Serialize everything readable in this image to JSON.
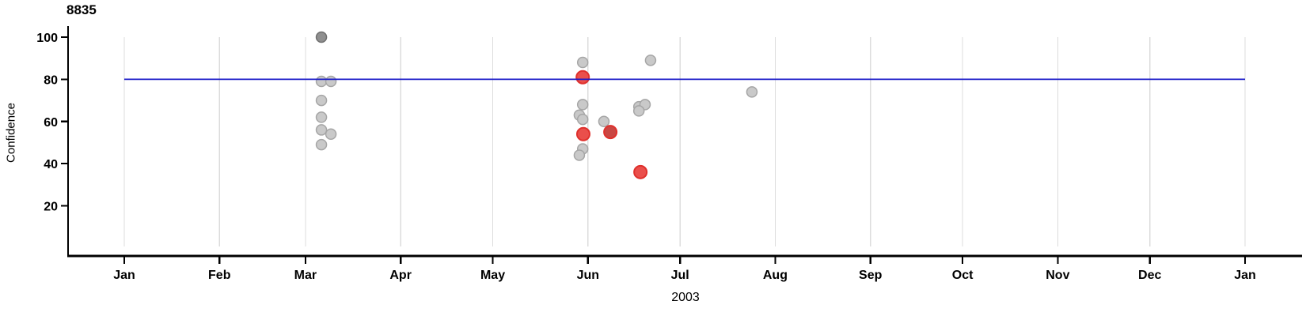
{
  "chart_data": {
    "type": "scatter",
    "title": "8835",
    "ylabel": "Confidence",
    "xlabel": "2003",
    "x_axis": {
      "unit": "date (year 2003, Jan through following Jan)",
      "tick_labels": [
        "Jan",
        "Feb",
        "Mar",
        "Apr",
        "May",
        "Jun",
        "Jul",
        "Aug",
        "Sep",
        "Oct",
        "Nov",
        "Dec",
        "Jan"
      ],
      "tick_days": [
        0,
        31,
        59,
        90,
        120,
        151,
        181,
        212,
        243,
        273,
        304,
        334,
        365
      ],
      "range_days": [
        0,
        365
      ],
      "grid": "vertical-gridlines-at-month-starts"
    },
    "y_axis": {
      "ticks": [
        20,
        40,
        60,
        80,
        100
      ],
      "range": [
        0,
        105
      ],
      "grid": "off"
    },
    "reference_line": {
      "y": 80,
      "color": "#1A1AC8"
    },
    "legend": "none",
    "series_colors": {
      "gray": {
        "fill": "#C9C9C9",
        "stroke": "#A6A6A6"
      },
      "gray_dark": {
        "fill": "#8F8F8F",
        "stroke": "#6E6E6E"
      },
      "red": {
        "fill": "#EA4F4B",
        "stroke": "#DF302C"
      },
      "red_dark": {
        "fill": "#C94743",
        "stroke": "#DF302C"
      }
    },
    "points": [
      {
        "date": "Mar 6",
        "day": 64.2,
        "confidence": 100,
        "series": "gray",
        "shade": "dark"
      },
      {
        "date": "Mar 6",
        "day": 64.2,
        "confidence": 79,
        "series": "gray",
        "shade": "normal"
      },
      {
        "date": "Mar 9",
        "day": 67.3,
        "confidence": 79,
        "series": "gray",
        "shade": "normal"
      },
      {
        "date": "Mar 6",
        "day": 64.2,
        "confidence": 70,
        "series": "gray",
        "shade": "normal"
      },
      {
        "date": "Mar 6",
        "day": 64.2,
        "confidence": 62,
        "series": "gray",
        "shade": "normal"
      },
      {
        "date": "Mar 6",
        "day": 64.2,
        "confidence": 56,
        "series": "gray",
        "shade": "normal"
      },
      {
        "date": "Mar 9",
        "day": 67.3,
        "confidence": 54,
        "series": "gray",
        "shade": "normal"
      },
      {
        "date": "Mar 6",
        "day": 64.2,
        "confidence": 49,
        "series": "gray",
        "shade": "normal"
      },
      {
        "date": "May 30",
        "day": 149.3,
        "confidence": 88,
        "series": "gray",
        "shade": "normal"
      },
      {
        "date": "May 30",
        "day": 149.3,
        "confidence": 81,
        "series": "red",
        "shade": "normal"
      },
      {
        "date": "May 30",
        "day": 149.3,
        "confidence": 68,
        "series": "gray",
        "shade": "normal"
      },
      {
        "date": "May 29",
        "day": 148.2,
        "confidence": 63,
        "series": "gray",
        "shade": "normal"
      },
      {
        "date": "May 30",
        "day": 149.3,
        "confidence": 61,
        "series": "gray",
        "shade": "normal"
      },
      {
        "date": "May 30",
        "day": 149.5,
        "confidence": 54,
        "series": "red",
        "shade": "normal"
      },
      {
        "date": "May 30",
        "day": 149.3,
        "confidence": 47,
        "series": "gray",
        "shade": "normal"
      },
      {
        "date": "May 29",
        "day": 148.2,
        "confidence": 44,
        "series": "gray",
        "shade": "normal"
      },
      {
        "date": "Jun 6",
        "day": 156.2,
        "confidence": 60,
        "series": "gray",
        "shade": "normal"
      },
      {
        "date": "Jun 8",
        "day": 158.3,
        "confidence": 55,
        "series": "red",
        "shade": "dark"
      },
      {
        "date": "Jun 17",
        "day": 167.6,
        "confidence": 67,
        "series": "gray",
        "shade": "normal"
      },
      {
        "date": "Jun 19",
        "day": 169.6,
        "confidence": 68,
        "series": "gray",
        "shade": "normal"
      },
      {
        "date": "Jun 17",
        "day": 167.6,
        "confidence": 65,
        "series": "gray",
        "shade": "normal"
      },
      {
        "date": "Jun 18",
        "day": 168.1,
        "confidence": 36,
        "series": "red",
        "shade": "normal"
      },
      {
        "date": "Jun 21",
        "day": 171.4,
        "confidence": 89,
        "series": "gray",
        "shade": "normal"
      },
      {
        "date": "Jul 24",
        "day": 204.4,
        "confidence": 74,
        "series": "gray",
        "shade": "normal"
      }
    ]
  }
}
